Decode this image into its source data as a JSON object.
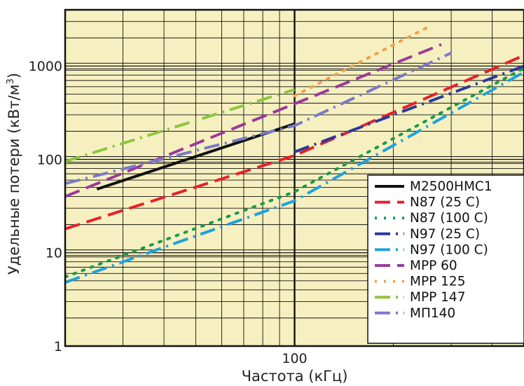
{
  "chart_data": {
    "type": "line",
    "title": "",
    "xlabel": "Частота (кГц)",
    "ylabel": "Удельные потери (кВт/м3)",
    "ylabel_parts": [
      "Удельные потери (кВт/м",
      "3",
      ")"
    ],
    "x_scale": "log",
    "y_scale": "log",
    "xlim": [
      20,
      500
    ],
    "ylim": [
      1,
      4000
    ],
    "x_ticks": [
      {
        "value": 100,
        "label": "100"
      }
    ],
    "y_ticks": [
      {
        "value": 1,
        "label": "1"
      },
      {
        "value": 10,
        "label": "10"
      },
      {
        "value": 100,
        "label": "100"
      },
      {
        "value": 1000,
        "label": "1000"
      }
    ],
    "grid": true,
    "background": "#f6f0c0",
    "legend_position": "bottom-right",
    "series": [
      {
        "name": "M2500НМС1",
        "color": "#111111",
        "style": "solid",
        "x": [
          25,
          100
        ],
        "y": [
          48,
          240
        ]
      },
      {
        "name": "N87 (25 C)",
        "color": "#e8202a",
        "style": "dash",
        "x": [
          20,
          100,
          500
        ],
        "y": [
          18,
          110,
          1300
        ]
      },
      {
        "name": "N87 (100 C)",
        "color": "#1a9a4a",
        "style": "dot",
        "x": [
          20,
          100,
          500
        ],
        "y": [
          5.5,
          45,
          950
        ]
      },
      {
        "name": "N97 (25 C)",
        "color": "#2a3a9a",
        "style": "dashdot",
        "x": [
          100,
          500
        ],
        "y": [
          120,
          1000
        ]
      },
      {
        "name": "N97 (100 C)",
        "color": "#1ca3dc",
        "style": "dashdot",
        "x": [
          20,
          100,
          500
        ],
        "y": [
          4.8,
          36,
          860
        ]
      },
      {
        "name": "MPP 60",
        "color": "#9a3a9a",
        "style": "dash",
        "x": [
          20,
          280
        ],
        "y": [
          40,
          1700
        ]
      },
      {
        "name": "MPP 125",
        "color": "#f0a050",
        "style": "dot",
        "x": [
          100,
          260
        ],
        "y": [
          480,
          2700
        ]
      },
      {
        "name": "MPP 147",
        "color": "#8dc63f",
        "style": "dashdot",
        "x": [
          20,
          100
        ],
        "y": [
          95,
          560
        ]
      },
      {
        "name": "МП140",
        "color": "#7a7ac8",
        "style": "dashdot",
        "x": [
          20,
          100,
          300
        ],
        "y": [
          55,
          230,
          1380
        ]
      }
    ]
  }
}
